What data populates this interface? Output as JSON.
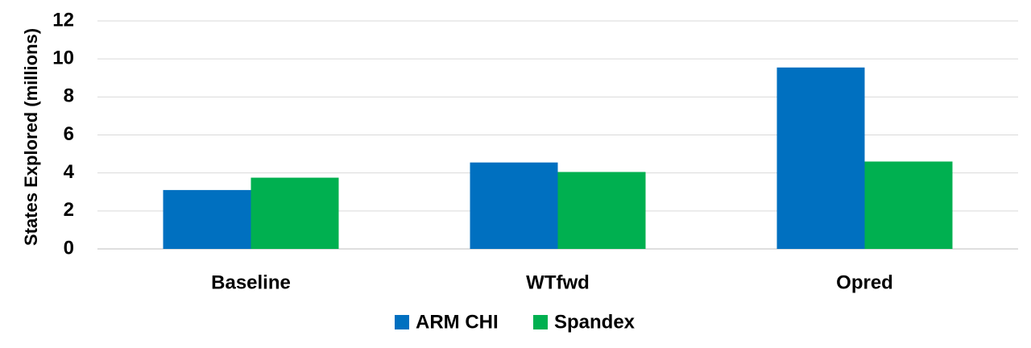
{
  "chart_data": {
    "type": "bar",
    "y_label": "States Explored (millions)",
    "categories": [
      "Baseline",
      "WTfwd",
      "Opred"
    ],
    "series": [
      {
        "name": "ARM CHI",
        "color": "#0070c0",
        "values": [
          3.1,
          4.55,
          9.55
        ]
      },
      {
        "name": "Spandex",
        "color": "#00b050",
        "values": [
          3.75,
          4.05,
          4.6
        ]
      }
    ],
    "ylim": [
      0,
      12
    ],
    "yticks": [
      0,
      2,
      4,
      6,
      8,
      10,
      12
    ],
    "grid": true,
    "legend": "bottom"
  }
}
